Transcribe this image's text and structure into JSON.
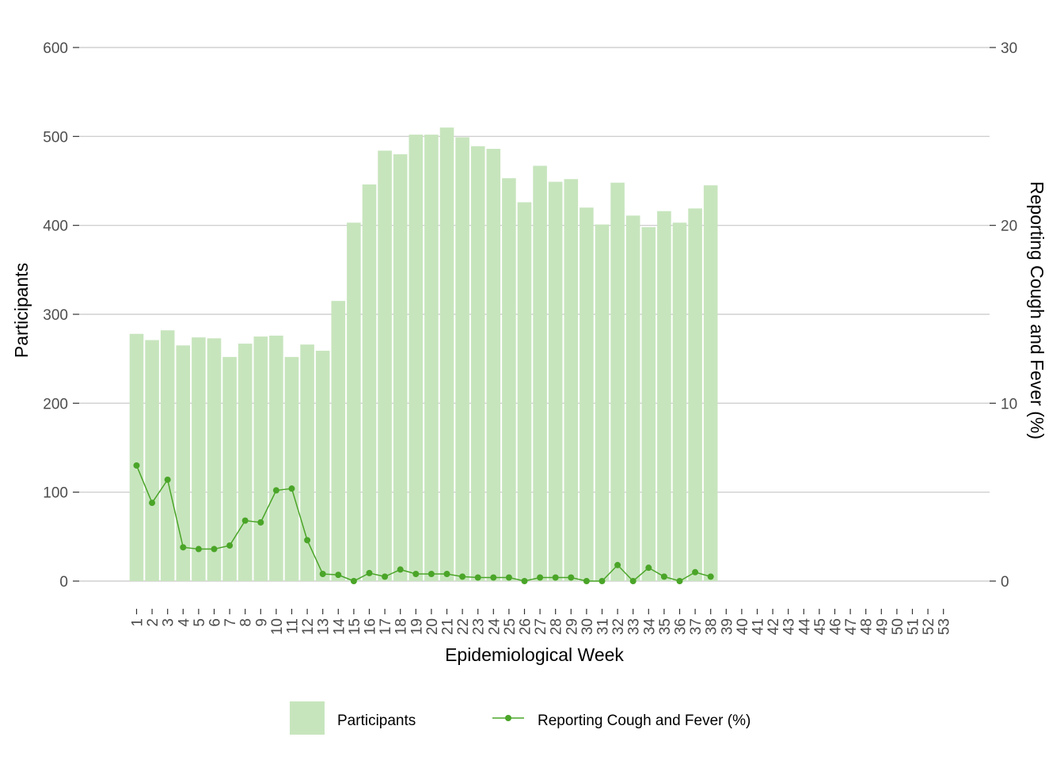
{
  "chart_data": {
    "type": "bar",
    "categories": [
      "1",
      "2",
      "3",
      "4",
      "5",
      "6",
      "7",
      "8",
      "9",
      "10",
      "11",
      "12",
      "13",
      "14",
      "15",
      "16",
      "17",
      "18",
      "19",
      "20",
      "21",
      "22",
      "23",
      "24",
      "25",
      "26",
      "27",
      "28",
      "29",
      "30",
      "31",
      "32",
      "33",
      "34",
      "35",
      "36",
      "37",
      "38",
      "39",
      "40",
      "41",
      "42",
      "43",
      "44",
      "45",
      "46",
      "47",
      "48",
      "49",
      "50",
      "51",
      "52",
      "53"
    ],
    "series": [
      {
        "name": "Participants",
        "type": "bar",
        "axis": "left",
        "color": "#c7e5bd",
        "values": [
          278,
          271,
          282,
          265,
          274,
          273,
          252,
          267,
          275,
          276,
          252,
          266,
          259,
          315,
          403,
          446,
          484,
          480,
          502,
          502,
          510,
          499,
          489,
          486,
          453,
          426,
          467,
          449,
          452,
          420,
          401,
          448,
          411,
          398,
          416,
          403,
          419,
          445,
          null,
          null,
          null,
          null,
          null,
          null,
          null,
          null,
          null,
          null,
          null,
          null,
          null,
          null,
          null
        ]
      },
      {
        "name": "Reporting Cough and Fever (%)",
        "type": "line",
        "axis": "right",
        "color": "#4aa528",
        "values": [
          6.5,
          4.4,
          5.7,
          1.9,
          1.8,
          1.8,
          2.0,
          3.4,
          3.3,
          5.1,
          5.2,
          2.3,
          0.4,
          0.35,
          0.0,
          0.45,
          0.25,
          0.65,
          0.4,
          0.4,
          0.4,
          0.25,
          0.2,
          0.2,
          0.2,
          0.0,
          0.2,
          0.2,
          0.2,
          0.0,
          0.0,
          0.9,
          0.0,
          0.75,
          0.25,
          0.0,
          0.5,
          0.25,
          null,
          null,
          null,
          null,
          null,
          null,
          null,
          null,
          null,
          null,
          null,
          null,
          null,
          null,
          null
        ]
      }
    ],
    "xlabel": "Epidemiological Week",
    "ylabel": "Participants",
    "ylabel_right": "Reporting Cough and Fever (%)",
    "ylim": [
      0,
      600
    ],
    "yticks": [
      0,
      100,
      200,
      300,
      400,
      500,
      600
    ],
    "ylim_right": [
      0,
      30
    ],
    "yticks_right": [
      0,
      10,
      20,
      30
    ],
    "grid": "horizontal",
    "legend_position": "bottom"
  },
  "legend": {
    "items": [
      {
        "label": "Participants"
      },
      {
        "label": "Reporting Cough and Fever (%)"
      }
    ]
  }
}
